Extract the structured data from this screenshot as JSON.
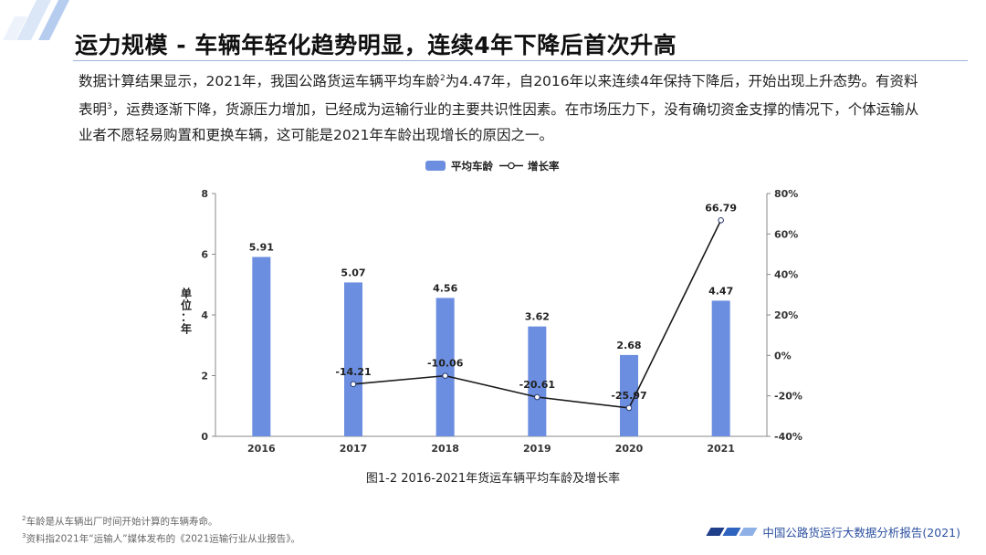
{
  "header": {
    "title": "运力规模 - 车辆年轻化趋势明显，连续4年下降后首次升高"
  },
  "body": {
    "paragraph_before_sup2": "数据计算结果显示，2021年，我国公路货运车辆平均车龄",
    "sup2": "2",
    "paragraph_mid": "为4.47年，自2016年以来连续4年保持下降后，开始出现上升态势。有资料表明",
    "sup3": "3",
    "paragraph_after": "，运费逐渐下降，货源压力增加，已经成为运输行业的主要共识性因素。在市场压力下，没有确切资金支撑的情况下，个体运输从业者不愿轻易购置和更换车辆，这可能是2021年车龄出现增长的原因之一。"
  },
  "chart_data": {
    "type": "bar",
    "caption": "图1-2 2016-2021年货运车辆平均车龄及增长率",
    "categories": [
      "2016",
      "2017",
      "2018",
      "2019",
      "2020",
      "2021"
    ],
    "series": [
      {
        "name": "平均车龄",
        "type": "bar",
        "axis": "left",
        "values": [
          5.91,
          5.07,
          4.56,
          3.62,
          2.68,
          4.47
        ],
        "labels": [
          "5.91",
          "5.07",
          "4.56",
          "3.62",
          "2.68",
          "4.47"
        ],
        "color": "#6c8ee0"
      },
      {
        "name": "增长率",
        "type": "line",
        "axis": "right",
        "values": [
          null,
          -14.21,
          -10.06,
          -20.61,
          -25.97,
          66.79
        ],
        "labels": [
          "",
          "-14.21",
          "-10.06",
          "-20.61",
          "-25.97",
          "66.79"
        ],
        "color": "#1a1a1a"
      }
    ],
    "ylabel": "单位：年",
    "ylim": [
      0,
      8
    ],
    "yticks": [
      "0",
      "2",
      "4",
      "6",
      "8"
    ],
    "y2lim": [
      -40,
      80
    ],
    "y2ticks": [
      "-40%",
      "-20%",
      "0%",
      "20%",
      "40%",
      "60%",
      "80%"
    ],
    "legend": "top-center",
    "grid": false
  },
  "footnotes": [
    {
      "sup": "2",
      "text": "车龄是从车辆出厂时间开始计算的车辆寿命。"
    },
    {
      "sup": "3",
      "text": "资料指2021年“运输人”媒体发布的《2021运输行业从业报告》。"
    }
  ],
  "brand": {
    "text": "中国公路货运行大数据分析报告(2021)",
    "colors": [
      "#1f3f8a",
      "#2f63c0",
      "#8fb0e6"
    ]
  }
}
